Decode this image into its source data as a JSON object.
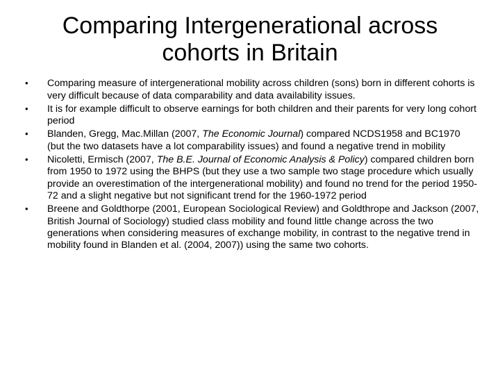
{
  "title_fontsize": 34,
  "body_fontsize": 14.2,
  "background_color": "#ffffff",
  "text_color": "#000000",
  "title": "Comparing Intergenerational across cohorts in Britain",
  "bullets": [
    {
      "text": "Comparing measure of intergenerational mobility across children (sons) born in different cohorts is very difficult because of data comparability and data availability issues."
    },
    {
      "text": "It is for example difficult to observe earnings for both children and their parents for very long cohort period"
    },
    {
      "pre": "Blanden, Gregg, Mac.Millan (2007, ",
      "ital": "The Economic Journal",
      "post": ")  compared NCDS1958 and BC1970 (but the two datasets have a lot comparability issues) and found a negative trend in mobility"
    },
    {
      "pre": "Nicoletti, Ermisch (2007, ",
      "ital": "The B.E. Journal of Economic Analysis & Policy",
      "post": ") compared children born from 1950 to 1972 using the BHPS (but they use a two sample two stage procedure which usually  provide an overestimation of the intergenerational mobility) and found no trend for the period 1950-72 and a slight negative but not significant trend for the 1960-1972 period"
    },
    {
      "text": "Breene and Goldthorpe (2001, European Sociological Review) and Goldthrope and Jackson (2007, British Journal of Sociology) studied class mobility and found little change across the two generations when considering measures of exchange mobility, in contrast to the negative trend in mobility found in Blanden et al. (2004, 2007)) using the same two cohorts."
    }
  ]
}
